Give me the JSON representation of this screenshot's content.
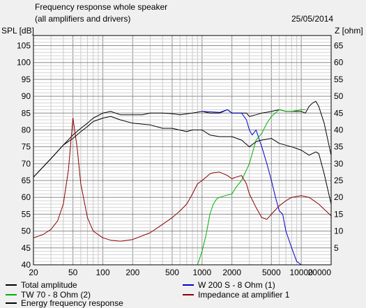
{
  "header": {
    "title": "Frequency response whole speaker",
    "subtitle": "(all amplifiers and drivers)",
    "date": "25/05/2014"
  },
  "chart_data": {
    "type": "line",
    "title": "Frequency response whole speaker",
    "subtitle": "(all amplifiers and drivers)",
    "xscale": "log",
    "xlim": [
      20,
      20000
    ],
    "x_ticks": [
      20,
      50,
      100,
      200,
      500,
      1000,
      2000,
      5000,
      10000,
      20000
    ],
    "x_tick_labels": [
      "20",
      "50",
      "100",
      "200",
      "500",
      "1000",
      "2000",
      "5000",
      "10000",
      "20000"
    ],
    "ylabel_left": "SPL [dB]",
    "ylim_left": [
      40,
      108
    ],
    "y_ticks_left": [
      40,
      45,
      50,
      55,
      60,
      65,
      70,
      75,
      80,
      85,
      90,
      95,
      100,
      105
    ],
    "ylabel_right": "Z [ohm]",
    "ylim_right": [
      0,
      68
    ],
    "y_ticks_right": [
      5,
      10,
      15,
      20,
      25,
      30,
      35,
      40,
      45,
      50,
      55,
      60,
      65
    ],
    "grid": true,
    "legend_position": "bottom",
    "series": [
      {
        "name": "Total amplitude",
        "color": "#000000",
        "axis": "left",
        "points": [
          [
            20,
            66
          ],
          [
            30,
            71.5
          ],
          [
            40,
            75.5
          ],
          [
            50,
            78.5
          ],
          [
            60,
            80.5
          ],
          [
            70,
            82
          ],
          [
            80,
            83.5
          ],
          [
            100,
            85
          ],
          [
            120,
            85.5
          ],
          [
            150,
            84.5
          ],
          [
            200,
            84.5
          ],
          [
            250,
            84.5
          ],
          [
            300,
            85
          ],
          [
            400,
            85
          ],
          [
            500,
            84.8
          ],
          [
            600,
            84.5
          ],
          [
            800,
            85
          ],
          [
            1000,
            85.5
          ],
          [
            1200,
            85
          ],
          [
            1500,
            85
          ],
          [
            1800,
            86
          ],
          [
            2000,
            85
          ],
          [
            2500,
            85
          ],
          [
            2800,
            85
          ],
          [
            3000,
            84
          ],
          [
            3500,
            84.5
          ],
          [
            4000,
            85
          ],
          [
            5000,
            85.5
          ],
          [
            6000,
            86
          ],
          [
            7000,
            85.5
          ],
          [
            8000,
            85.5
          ],
          [
            10000,
            85.5
          ],
          [
            11000,
            85
          ],
          [
            12000,
            87
          ],
          [
            13000,
            88
          ],
          [
            14000,
            88.5
          ],
          [
            15000,
            87
          ],
          [
            17000,
            82
          ],
          [
            20000,
            72.5
          ]
        ]
      },
      {
        "name": "W 200 S - 8 Ohm (1)",
        "color": "#0000cc",
        "axis": "left",
        "points": [
          [
            1000,
            85.5
          ],
          [
            1500,
            85.2
          ],
          [
            1800,
            86
          ],
          [
            2000,
            85
          ],
          [
            2500,
            85
          ],
          [
            2800,
            83
          ],
          [
            3000,
            80
          ],
          [
            3200,
            78.5
          ],
          [
            3500,
            80
          ],
          [
            4000,
            75
          ],
          [
            4500,
            70
          ],
          [
            5000,
            65
          ],
          [
            5500,
            60
          ],
          [
            6000,
            56
          ],
          [
            6500,
            55
          ],
          [
            7000,
            50
          ],
          [
            8000,
            45
          ],
          [
            9000,
            41
          ],
          [
            10000,
            40
          ]
        ]
      },
      {
        "name": "TW 70 - 8 Ohm (2)",
        "color": "#00b000",
        "axis": "left",
        "points": [
          [
            20,
            40
          ],
          [
            900,
            40
          ],
          [
            1000,
            44
          ],
          [
            1100,
            49
          ],
          [
            1200,
            55
          ],
          [
            1300,
            58
          ],
          [
            1400,
            59.5
          ],
          [
            1500,
            60
          ],
          [
            1700,
            60.5
          ],
          [
            2000,
            61
          ],
          [
            2200,
            63
          ],
          [
            2500,
            65
          ],
          [
            3000,
            70
          ],
          [
            3500,
            77
          ],
          [
            4000,
            79
          ],
          [
            4500,
            82
          ],
          [
            5000,
            84
          ],
          [
            6000,
            86
          ],
          [
            7000,
            85.5
          ],
          [
            8000,
            85.5
          ],
          [
            10000,
            86
          ],
          [
            11000,
            86
          ]
        ]
      },
      {
        "name": "Impedance at amplifier 1",
        "color": "#8b0000",
        "axis": "right",
        "points": [
          [
            20,
            8
          ],
          [
            25,
            9
          ],
          [
            30,
            10.5
          ],
          [
            35,
            13
          ],
          [
            40,
            18
          ],
          [
            45,
            28
          ],
          [
            50,
            43.5
          ],
          [
            55,
            35
          ],
          [
            60,
            24
          ],
          [
            70,
            14
          ],
          [
            80,
            10
          ],
          [
            100,
            8
          ],
          [
            120,
            7.3
          ],
          [
            150,
            7
          ],
          [
            200,
            7.5
          ],
          [
            300,
            9.5
          ],
          [
            400,
            12
          ],
          [
            500,
            14
          ],
          [
            600,
            16
          ],
          [
            700,
            18
          ],
          [
            800,
            21
          ],
          [
            900,
            24
          ],
          [
            1000,
            25
          ],
          [
            1100,
            26
          ],
          [
            1200,
            27
          ],
          [
            1300,
            27.3
          ],
          [
            1500,
            27.5
          ],
          [
            1800,
            26.5
          ],
          [
            2000,
            25.5
          ],
          [
            2200,
            26
          ],
          [
            2500,
            26.5
          ],
          [
            2800,
            24
          ],
          [
            3000,
            21
          ],
          [
            3500,
            17
          ],
          [
            4000,
            14
          ],
          [
            4500,
            13.5
          ],
          [
            5000,
            15
          ],
          [
            6000,
            17.5
          ],
          [
            7000,
            19
          ],
          [
            8000,
            20
          ],
          [
            10000,
            20.5
          ],
          [
            12000,
            20
          ],
          [
            15000,
            18
          ],
          [
            20000,
            14.5
          ]
        ]
      },
      {
        "name": "Energy frequency response",
        "color": "#000000",
        "axis": "left",
        "points": [
          [
            20,
            66
          ],
          [
            30,
            71.5
          ],
          [
            40,
            75.5
          ],
          [
            50,
            77.5
          ],
          [
            60,
            79.5
          ],
          [
            70,
            81
          ],
          [
            80,
            82.5
          ],
          [
            100,
            83.5
          ],
          [
            120,
            84
          ],
          [
            150,
            83
          ],
          [
            200,
            82
          ],
          [
            300,
            81.5
          ],
          [
            400,
            80.5
          ],
          [
            500,
            80.5
          ],
          [
            700,
            79.5
          ],
          [
            800,
            80
          ],
          [
            1000,
            80
          ],
          [
            1200,
            78.5
          ],
          [
            1500,
            78
          ],
          [
            2000,
            78
          ],
          [
            2500,
            77
          ],
          [
            3000,
            75
          ],
          [
            3500,
            76.5
          ],
          [
            4000,
            77
          ],
          [
            5000,
            77.5
          ],
          [
            6000,
            76
          ],
          [
            8000,
            75
          ],
          [
            10000,
            74
          ],
          [
            12000,
            72.5
          ],
          [
            14000,
            73.5
          ],
          [
            15000,
            73
          ],
          [
            17000,
            67
          ],
          [
            20000,
            58
          ]
        ]
      }
    ]
  }
}
